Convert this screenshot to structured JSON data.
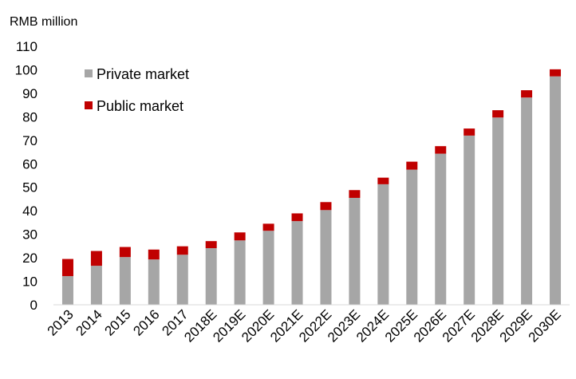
{
  "chart_data": {
    "type": "bar",
    "stacked": true,
    "ylabel": "RMB million",
    "ylim": [
      0,
      110
    ],
    "ytick_step": 10,
    "grid": false,
    "legend_position": "top-left",
    "categories": [
      "2013",
      "2014",
      "2015",
      "2016",
      "2017",
      "2018E",
      "2019E",
      "2020E",
      "2021E",
      "2022E",
      "2023E",
      "2024E",
      "2025E",
      "2026E",
      "2027E",
      "2028E",
      "2029E",
      "2030E"
    ],
    "series": [
      {
        "name": "Private market",
        "color": "#a6a6a6",
        "values": [
          12.2,
          16.6,
          20.3,
          19.3,
          21.3,
          24.1,
          27.4,
          31.5,
          35.6,
          40.3,
          45.5,
          51.3,
          57.5,
          64.3,
          72.0,
          79.7,
          88.2,
          97.2
        ]
      },
      {
        "name": "Public market",
        "color": "#c00000",
        "values": [
          7.3,
          6.3,
          4.3,
          4.2,
          3.6,
          3.0,
          3.4,
          3.0,
          3.3,
          3.4,
          3.3,
          2.8,
          3.4,
          3.2,
          3.0,
          3.1,
          3.1,
          3.0
        ]
      }
    ]
  }
}
